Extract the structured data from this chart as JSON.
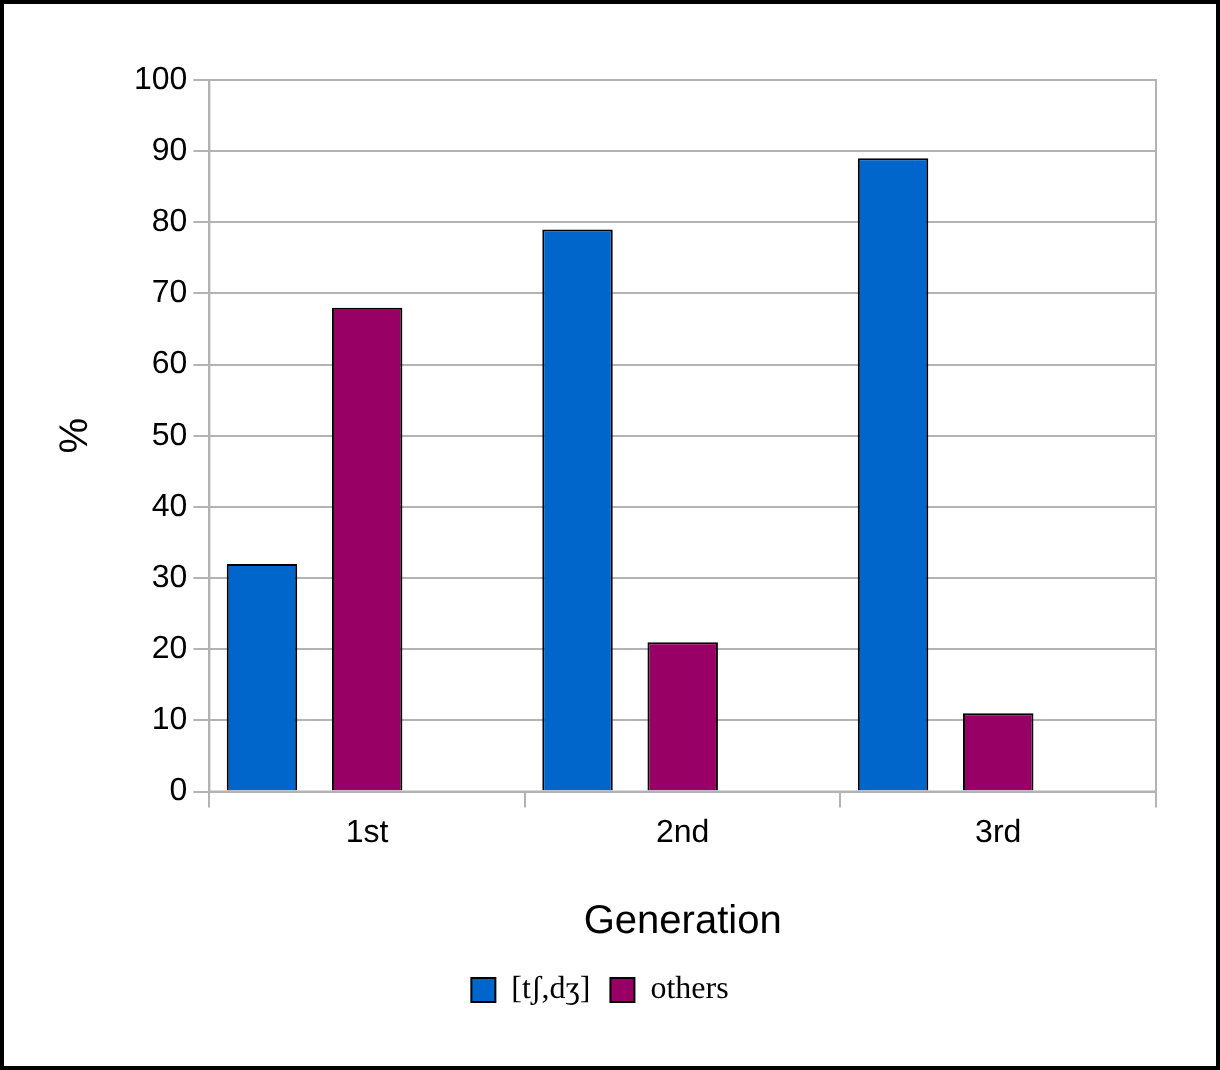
{
  "chart_data": {
    "type": "bar",
    "xlabel": "Generation",
    "ylabel": "%",
    "categories": [
      "1st",
      "2nd",
      "3rd"
    ],
    "series": [
      {
        "name": "[tʃ,dʒ]",
        "color": "#0066cc",
        "values": [
          32,
          79,
          89
        ]
      },
      {
        "name": "others",
        "color": "#990066",
        "values": [
          68,
          21,
          11
        ]
      }
    ],
    "ylim": [
      0,
      100
    ],
    "yticks": [
      0,
      10,
      20,
      30,
      40,
      50,
      60,
      70,
      80,
      90,
      100
    ],
    "grid": "y",
    "legend": "bottom"
  }
}
